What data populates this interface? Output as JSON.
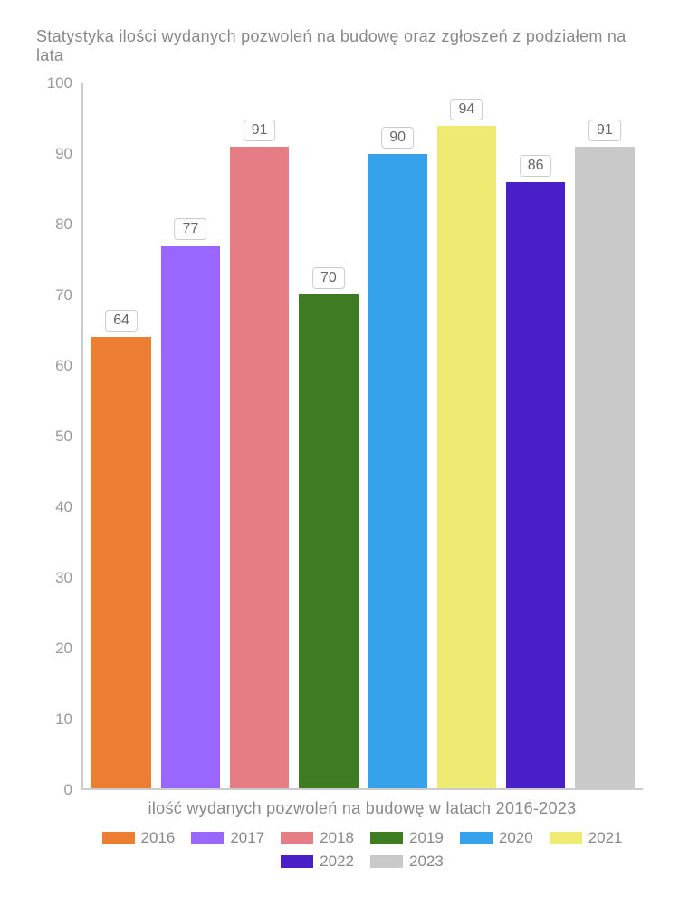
{
  "chart": {
    "type": "bar",
    "title": "Statystyka ilości wydanych pozwoleń na budowę oraz zgłoszeń z podziałem na lata",
    "title_fontsize": 18,
    "title_color": "#888888",
    "x_label": "ilość wydanych pozwoleń na budowę w latach 2016-2023",
    "x_label_fontsize": 18,
    "ylim": [
      0,
      100
    ],
    "ytick_step": 10,
    "yticks": [
      0,
      10,
      20,
      30,
      40,
      50,
      60,
      70,
      80,
      90,
      100
    ],
    "axis_color": "#cccccc",
    "text_color": "#999999",
    "background_color": "#ffffff",
    "bar_width": 0.86,
    "data_label_bg": "#ffffff",
    "data_label_border": "#cccccc",
    "series": [
      {
        "year": "2016",
        "value": 64,
        "color": "#ed7d31"
      },
      {
        "year": "2017",
        "value": 77,
        "color": "#9966ff"
      },
      {
        "year": "2018",
        "value": 91,
        "color": "#e67c84"
      },
      {
        "year": "2019",
        "value": 70,
        "color": "#3d7c20"
      },
      {
        "year": "2020",
        "value": 90,
        "color": "#36a2eb"
      },
      {
        "year": "2021",
        "value": 94,
        "color": "#eeea72"
      },
      {
        "year": "2022",
        "value": 86,
        "color": "#4a1fc9"
      },
      {
        "year": "2023",
        "value": 91,
        "color": "#c9c9c9"
      }
    ]
  }
}
